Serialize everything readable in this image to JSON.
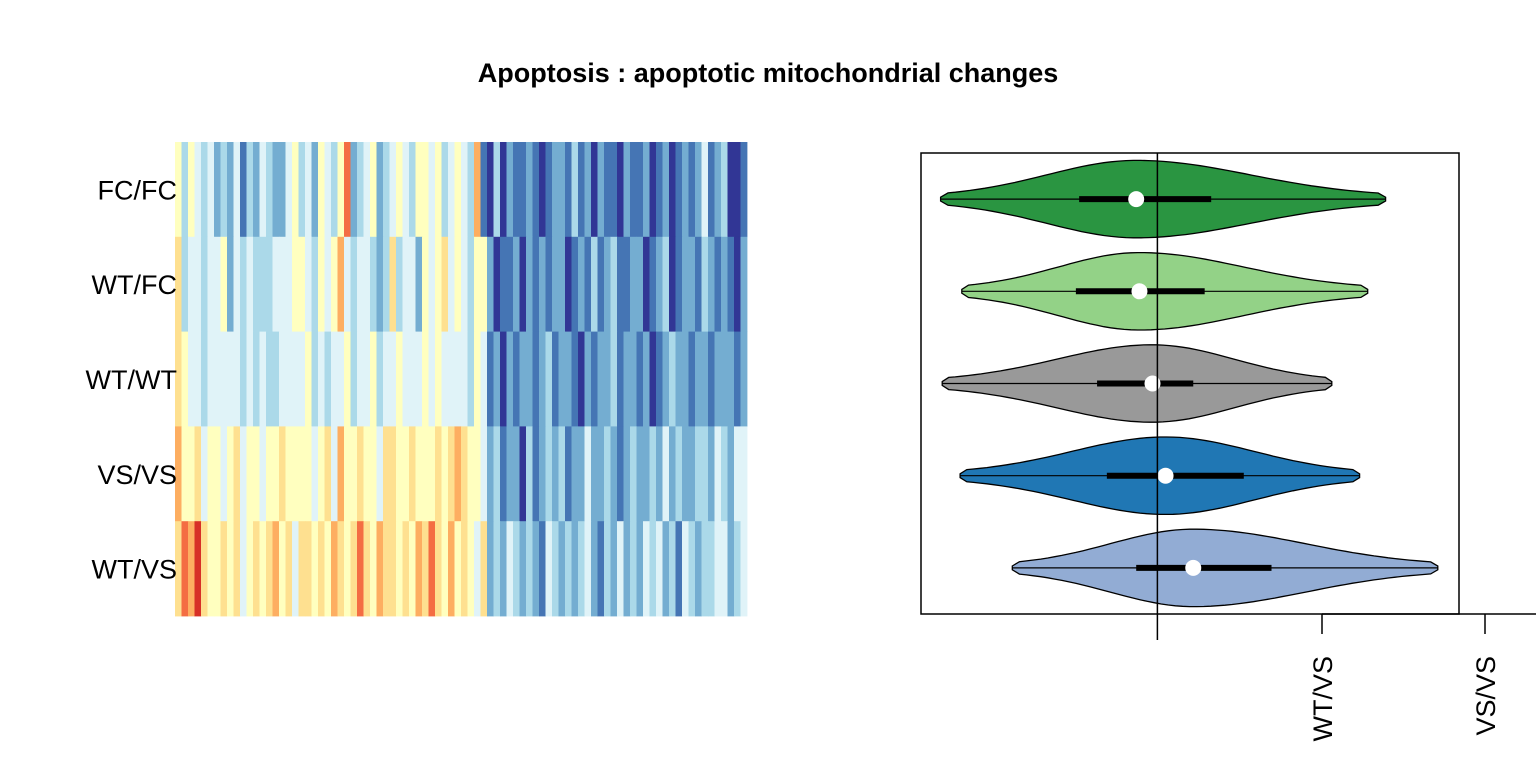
{
  "title": "Apoptosis : apoptotic mitochondrial changes",
  "chart_data": [
    {
      "type": "heatmap",
      "rows": [
        "FC/FC",
        "WT/FC",
        "WT/WT",
        "VS/VS",
        "WT/VS"
      ],
      "n_columns": 88,
      "palette": [
        "#313695",
        "#4575b4",
        "#74add1",
        "#abd9e9",
        "#e0f3f8",
        "#ffffbf",
        "#fee090",
        "#fdae61",
        "#f46d43",
        "#d73027"
      ],
      "values": [
        [
          6,
          4,
          6,
          5,
          4,
          5,
          3,
          4,
          3,
          5,
          2,
          4,
          3,
          5,
          4,
          3,
          3,
          5,
          6,
          4,
          5,
          3,
          6,
          5,
          4,
          6,
          9,
          3,
          4,
          5,
          6,
          3,
          4,
          5,
          6,
          5,
          4,
          6,
          6,
          5,
          6,
          4,
          5,
          6,
          5,
          4,
          8,
          2,
          0,
          4,
          1,
          3,
          2,
          2,
          3,
          2,
          1,
          2,
          3,
          3,
          2,
          4,
          2,
          3,
          1,
          3,
          2,
          2,
          1,
          3,
          2,
          2,
          3,
          1,
          2,
          3,
          1,
          2,
          3,
          2,
          3,
          5,
          2,
          3,
          4,
          0,
          1,
          2
        ],
        [
          7,
          4,
          5,
          5,
          4,
          5,
          5,
          6,
          3,
          5,
          4,
          5,
          4,
          4,
          4,
          5,
          5,
          5,
          6,
          6,
          5,
          4,
          6,
          5,
          6,
          8,
          5,
          4,
          5,
          5,
          4,
          3,
          4,
          7,
          4,
          5,
          5,
          3,
          6,
          5,
          6,
          7,
          5,
          6,
          5,
          4,
          6,
          6,
          3,
          1,
          2,
          2,
          3,
          1,
          3,
          2,
          3,
          2,
          3,
          3,
          1,
          2,
          3,
          2,
          4,
          2,
          3,
          4,
          2,
          2,
          3,
          3,
          1,
          2,
          3,
          4,
          1,
          2,
          3,
          3,
          2,
          4,
          3,
          2,
          3,
          2,
          1,
          3
        ],
        [
          7,
          6,
          5,
          5,
          4,
          5,
          5,
          5,
          5,
          5,
          4,
          5,
          4,
          5,
          4,
          4,
          5,
          5,
          5,
          5,
          6,
          4,
          5,
          4,
          5,
          5,
          6,
          4,
          5,
          5,
          6,
          4,
          5,
          5,
          6,
          5,
          5,
          5,
          6,
          5,
          6,
          5,
          5,
          5,
          5,
          4,
          6,
          5,
          2,
          3,
          1,
          3,
          2,
          3,
          3,
          2,
          3,
          4,
          2,
          3,
          3,
          2,
          1,
          3,
          2,
          3,
          3,
          4,
          2,
          3,
          3,
          2,
          3,
          1,
          2,
          3,
          4,
          3,
          3,
          2,
          3,
          3,
          2,
          3,
          3,
          3,
          2,
          3
        ],
        [
          8,
          6,
          6,
          7,
          5,
          6,
          6,
          5,
          6,
          7,
          5,
          6,
          6,
          5,
          6,
          6,
          7,
          6,
          6,
          6,
          6,
          5,
          6,
          7,
          5,
          8,
          6,
          6,
          7,
          6,
          6,
          5,
          7,
          7,
          6,
          6,
          7,
          6,
          6,
          6,
          7,
          6,
          7,
          8,
          7,
          6,
          6,
          5,
          3,
          4,
          2,
          3,
          3,
          1,
          4,
          2,
          3,
          4,
          3,
          4,
          2,
          3,
          3,
          5,
          3,
          3,
          4,
          3,
          2,
          3,
          4,
          3,
          3,
          4,
          3,
          5,
          3,
          4,
          3,
          3,
          4,
          4,
          3,
          5,
          4,
          3,
          5,
          5
        ],
        [
          7,
          9,
          8,
          10,
          7,
          6,
          6,
          7,
          6,
          7,
          5,
          6,
          7,
          6,
          7,
          8,
          6,
          7,
          5,
          7,
          7,
          6,
          7,
          6,
          8,
          7,
          6,
          7,
          9,
          7,
          6,
          8,
          7,
          7,
          6,
          7,
          6,
          8,
          7,
          9,
          7,
          6,
          8,
          6,
          7,
          6,
          5,
          7,
          3,
          4,
          3,
          5,
          4,
          3,
          4,
          3,
          2,
          5,
          4,
          3,
          4,
          3,
          4,
          5,
          3,
          2,
          4,
          3,
          5,
          3,
          4,
          3,
          5,
          4,
          5,
          3,
          4,
          2,
          5,
          4,
          3,
          4,
          4,
          5,
          5,
          3,
          4,
          5
        ]
      ]
    },
    {
      "type": "violin",
      "groups": [
        {
          "name": "FC/FC",
          "color": "#2a9541",
          "min": -1.33,
          "q1": -0.48,
          "median": -0.13,
          "q3": 0.33,
          "max": 1.4
        },
        {
          "name": "WT/FC",
          "color": "#93d287",
          "min": -1.2,
          "q1": -0.5,
          "median": -0.11,
          "q3": 0.29,
          "max": 1.29
        },
        {
          "name": "WT/WT",
          "color": "#999999",
          "min": -1.32,
          "q1": -0.37,
          "median": -0.03,
          "q3": 0.22,
          "max": 1.07
        },
        {
          "name": "VS/VS",
          "color": "#2077b4",
          "min": -1.21,
          "q1": -0.31,
          "median": 0.05,
          "q3": 0.53,
          "max": 1.24
        },
        {
          "name": "WT/VS",
          "color": "#92acd4",
          "min": -0.89,
          "q1": -0.13,
          "median": 0.22,
          "q3": 0.7,
          "max": 1.72
        }
      ],
      "xlim": [
        -1.45,
        1.85
      ],
      "reference_line": 0,
      "tick_labels": [
        "WT/VS",
        "VS/VS"
      ],
      "tick_positions": [
        1,
        2
      ]
    }
  ]
}
